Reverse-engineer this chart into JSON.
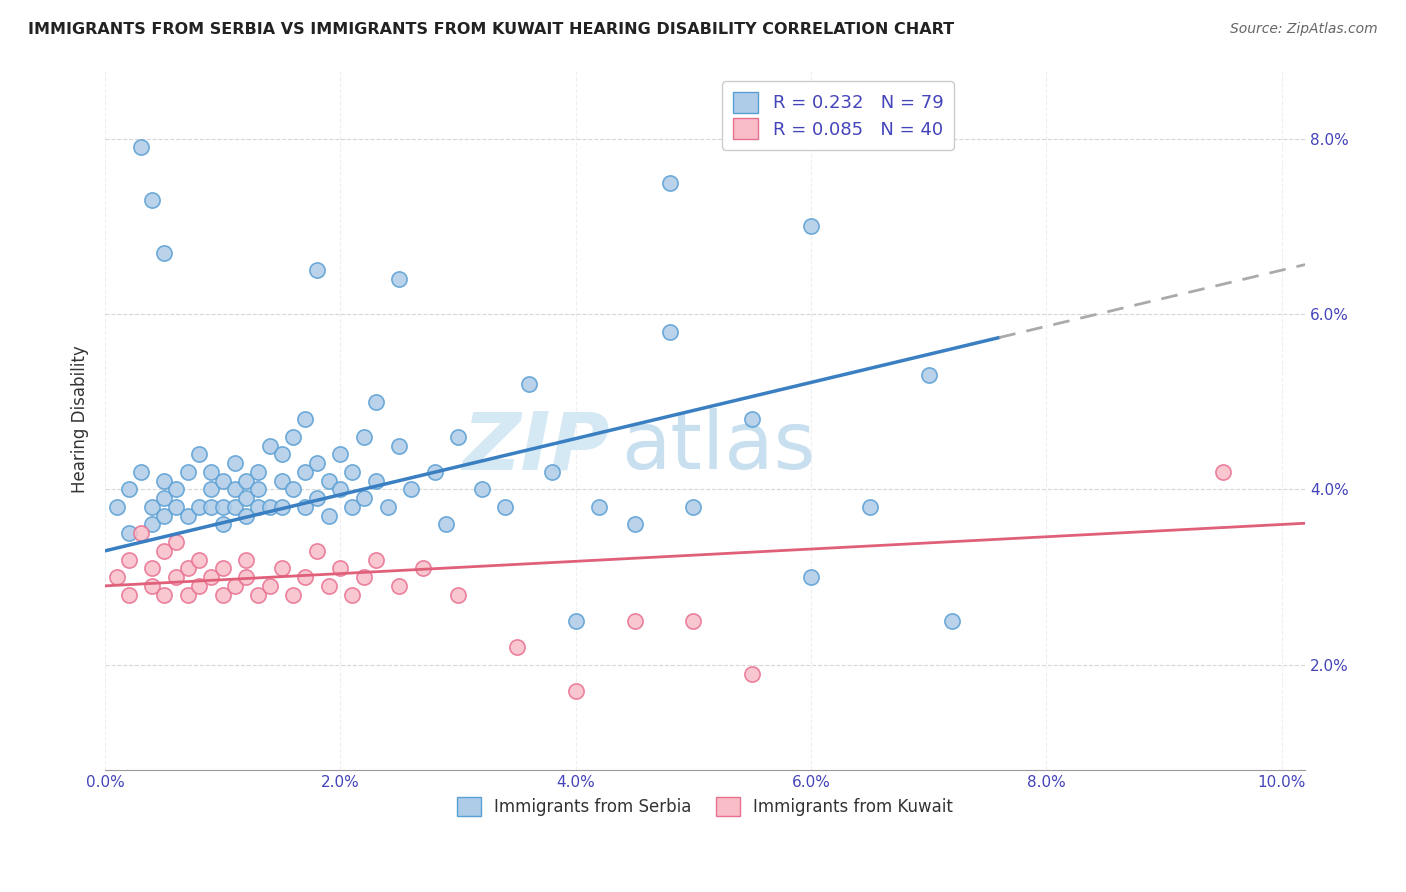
{
  "title": "IMMIGRANTS FROM SERBIA VS IMMIGRANTS FROM KUWAIT HEARING DISABILITY CORRELATION CHART",
  "source": "Source: ZipAtlas.com",
  "xlim": [
    0.0,
    0.102
  ],
  "ylim": [
    0.008,
    0.088
  ],
  "x_ticks": [
    0.0,
    0.02,
    0.04,
    0.06,
    0.08,
    0.1
  ],
  "y_ticks": [
    0.02,
    0.04,
    0.06,
    0.08
  ],
  "series1_label": "Immigrants from Serbia",
  "series2_label": "Immigrants from Kuwait",
  "series1_R": "0.232",
  "series1_N": "79",
  "series2_R": "0.085",
  "series2_N": "40",
  "series1_dot_face": "#aecce8",
  "series1_dot_edge": "#5a9fd4",
  "series2_dot_face": "#f9bdc8",
  "series2_dot_edge": "#e87090",
  "trendline1_color": "#3a7fc1",
  "trendline2_color": "#e0607a",
  "trendline1_dash_color": "#aaaaaa",
  "watermark_zip_color": "#d5e9f5",
  "watermark_atlas_color": "#c8dff0",
  "ylabel": "Hearing Disability",
  "title_color": "#222222",
  "source_color": "#666666",
  "tick_color": "#4444bb",
  "grid_color": "#cccccc",
  "legend_text_color": "#4444bb",
  "legend_label_color": "#333333",
  "trendline1_intercept": 0.033,
  "trendline1_slope": 0.32,
  "trendline1_solid_end": 0.076,
  "trendline2_intercept": 0.029,
  "trendline2_slope": 0.07,
  "serbia_x": [
    0.001,
    0.002,
    0.002,
    0.003,
    0.004,
    0.004,
    0.005,
    0.005,
    0.005,
    0.006,
    0.006,
    0.007,
    0.007,
    0.008,
    0.008,
    0.009,
    0.009,
    0.009,
    0.01,
    0.01,
    0.01,
    0.011,
    0.011,
    0.011,
    0.012,
    0.012,
    0.012,
    0.013,
    0.013,
    0.013,
    0.014,
    0.014,
    0.015,
    0.015,
    0.015,
    0.016,
    0.016,
    0.017,
    0.017,
    0.017,
    0.018,
    0.018,
    0.019,
    0.019,
    0.02,
    0.02,
    0.021,
    0.021,
    0.022,
    0.022,
    0.023,
    0.023,
    0.024,
    0.025,
    0.026,
    0.028,
    0.029,
    0.03,
    0.032,
    0.034,
    0.036,
    0.038,
    0.04,
    0.042,
    0.045,
    0.048,
    0.05,
    0.055,
    0.06,
    0.065,
    0.07,
    0.072,
    0.003,
    0.004,
    0.005,
    0.018,
    0.025,
    0.048,
    0.06
  ],
  "serbia_y": [
    0.038,
    0.04,
    0.035,
    0.042,
    0.038,
    0.036,
    0.039,
    0.041,
    0.037,
    0.04,
    0.038,
    0.042,
    0.037,
    0.044,
    0.038,
    0.04,
    0.042,
    0.038,
    0.038,
    0.041,
    0.036,
    0.043,
    0.038,
    0.04,
    0.039,
    0.041,
    0.037,
    0.042,
    0.038,
    0.04,
    0.045,
    0.038,
    0.041,
    0.038,
    0.044,
    0.04,
    0.046,
    0.042,
    0.038,
    0.048,
    0.043,
    0.039,
    0.041,
    0.037,
    0.04,
    0.044,
    0.038,
    0.042,
    0.046,
    0.039,
    0.041,
    0.05,
    0.038,
    0.045,
    0.04,
    0.042,
    0.036,
    0.046,
    0.04,
    0.038,
    0.052,
    0.042,
    0.025,
    0.038,
    0.036,
    0.058,
    0.038,
    0.048,
    0.03,
    0.038,
    0.053,
    0.025,
    0.079,
    0.073,
    0.067,
    0.065,
    0.064,
    0.075,
    0.07
  ],
  "kuwait_x": [
    0.001,
    0.002,
    0.002,
    0.003,
    0.004,
    0.004,
    0.005,
    0.005,
    0.006,
    0.006,
    0.007,
    0.007,
    0.008,
    0.008,
    0.009,
    0.01,
    0.01,
    0.011,
    0.012,
    0.012,
    0.013,
    0.014,
    0.015,
    0.016,
    0.017,
    0.018,
    0.019,
    0.02,
    0.021,
    0.022,
    0.023,
    0.025,
    0.027,
    0.03,
    0.035,
    0.04,
    0.045,
    0.05,
    0.055,
    0.095
  ],
  "kuwait_y": [
    0.03,
    0.032,
    0.028,
    0.035,
    0.029,
    0.031,
    0.028,
    0.033,
    0.03,
    0.034,
    0.028,
    0.031,
    0.032,
    0.029,
    0.03,
    0.028,
    0.031,
    0.029,
    0.03,
    0.032,
    0.028,
    0.029,
    0.031,
    0.028,
    0.03,
    0.033,
    0.029,
    0.031,
    0.028,
    0.03,
    0.032,
    0.029,
    0.031,
    0.028,
    0.022,
    0.017,
    0.025,
    0.025,
    0.019,
    0.042
  ]
}
